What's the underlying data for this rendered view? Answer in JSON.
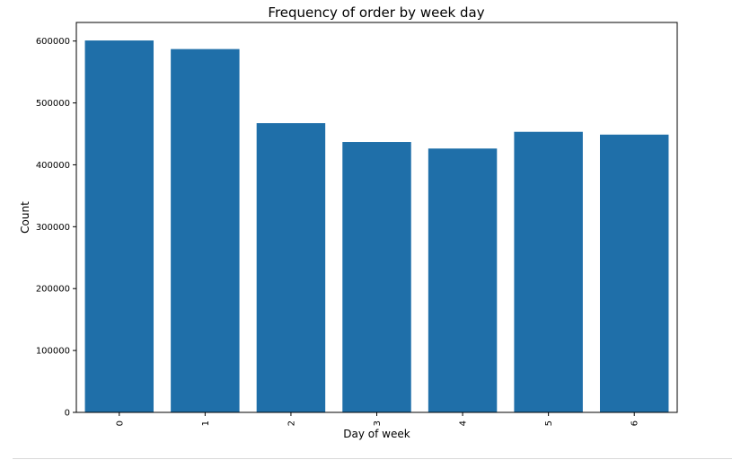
{
  "chart_data": {
    "type": "bar",
    "title": "Frequency of order by week day",
    "xlabel": "Day of week",
    "ylabel": "Count",
    "categories": [
      "0",
      "1",
      "2",
      "3",
      "4",
      "5",
      "6"
    ],
    "values": [
      600900,
      587000,
      467300,
      436900,
      426300,
      453300,
      448800
    ],
    "ylim": [
      0,
      630000
    ],
    "yticks": [
      0,
      100000,
      200000,
      300000,
      400000,
      500000,
      600000
    ],
    "ytick_labels": [
      "0",
      "100000",
      "200000",
      "300000",
      "400000",
      "500000",
      "600000"
    ],
    "color": "#1f6fa9",
    "grid": false,
    "legend": false
  }
}
